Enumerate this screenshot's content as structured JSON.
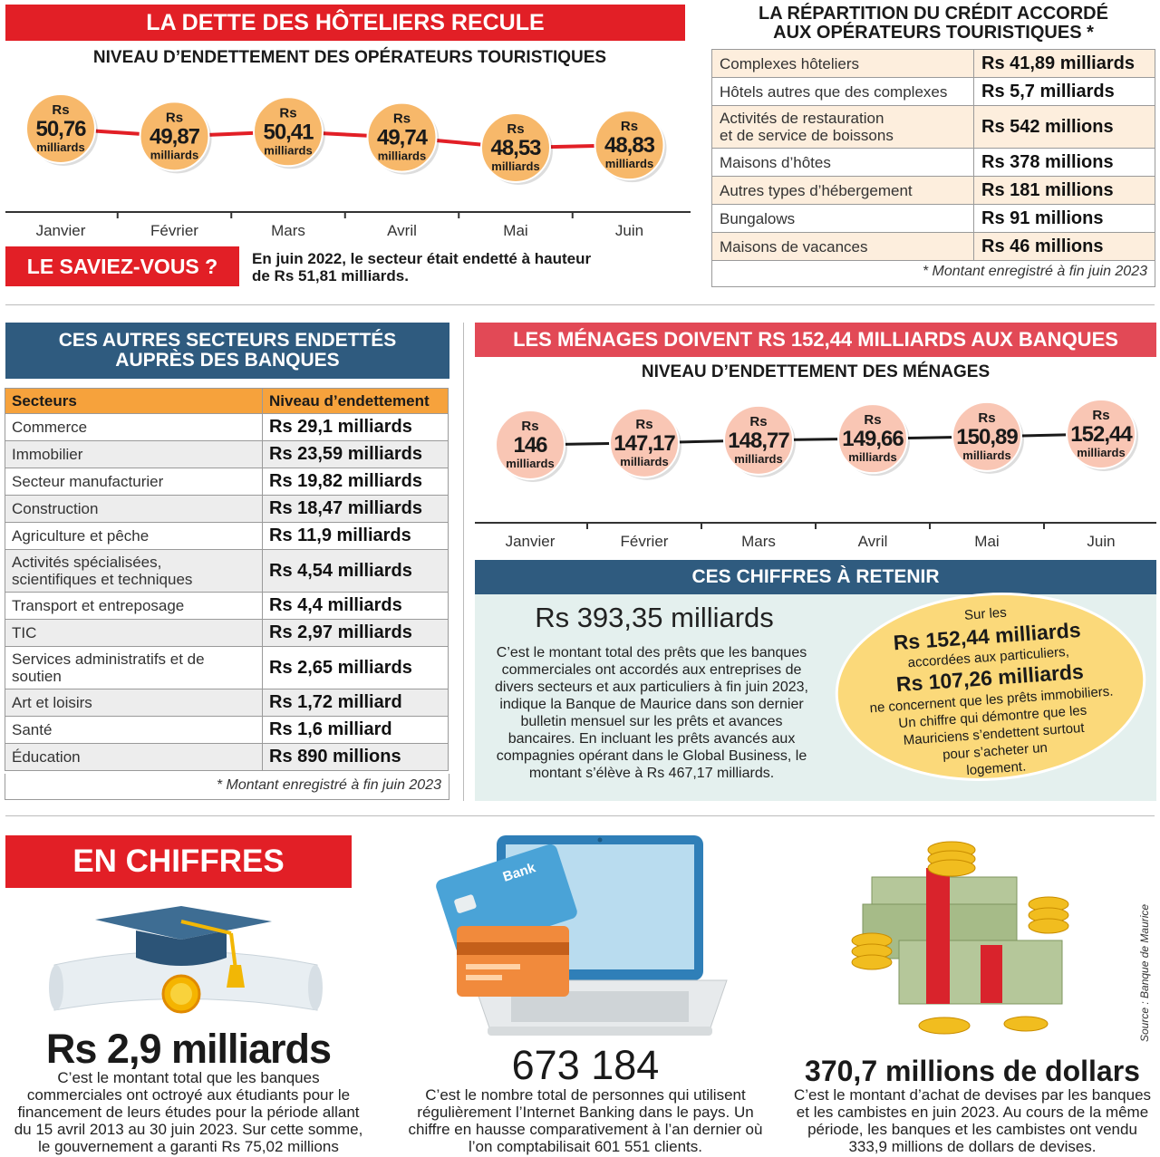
{
  "hotels": {
    "banner": "LA DETTE DES HÔTELIERS RECULE",
    "subtitle": "NIVEAU D’ENDETTEMENT DES OPÉRATEURS TOURISTIQUES",
    "saviez_label": "LE SAVIEZ-VOUS ?",
    "saviez_text_1": "En juin 2022, le secteur était endetté à hauteur",
    "saviez_text_2": "de Rs 51,81 milliards."
  },
  "credit": {
    "title_1": "LA RÉPARTITION DU CRÉDIT ACCORDÉ",
    "title_2": "AUX OPÉRATEURS TOURISTIQUES *",
    "rows": [
      {
        "label": "Complexes hôteliers",
        "value": "Rs 41,89 milliards"
      },
      {
        "label": "Hôtels autres que des complexes",
        "value": "Rs 5,7 milliards"
      },
      {
        "label": "Activités de restauration",
        "label2": "et de service de boissons",
        "value": "Rs 542 millions"
      },
      {
        "label": "Maisons d’hôtes",
        "value": "Rs 378 millions"
      },
      {
        "label": "Autres types d’hébergement",
        "value": "Rs 181 millions"
      },
      {
        "label": "Bungalows",
        "value": "Rs 91 millions"
      },
      {
        "label": "Maisons de vacances",
        "value": "Rs 46 millions"
      }
    ],
    "footnote": "* Montant enregistré à fin juin 2023"
  },
  "sectors": {
    "title_1": "CES AUTRES SECTEURS ENDETTÉS",
    "title_2": "AUPRÈS DES BANQUES",
    "col1": "Secteurs",
    "col2": "Niveau d’endettement",
    "rows": [
      {
        "label": "Commerce",
        "value": "Rs 29,1 milliards"
      },
      {
        "label": "Immobilier",
        "value": "Rs 23,59 milliards"
      },
      {
        "label": "Secteur manufacturier",
        "value": "Rs 19,82 milliards"
      },
      {
        "label": "Construction",
        "value": "Rs 18,47 milliards"
      },
      {
        "label": "Agriculture et pêche",
        "value": "Rs 11,9 milliards"
      },
      {
        "label": "Activités spécialisées,",
        "label2": "scientifiques et techniques",
        "value": "Rs 4,54 milliards"
      },
      {
        "label": "Transport et entreposage",
        "value": "Rs 4,4 milliards"
      },
      {
        "label": "TIC",
        "value": "Rs 2,97 milliards"
      },
      {
        "label": "Services administratifs et de",
        "label2": "soutien",
        "value": "Rs 2,65 milliards"
      },
      {
        "label": "Art et loisirs",
        "value": "Rs 1,72 milliard"
      },
      {
        "label": "Santé",
        "value": "Rs 1,6 milliard"
      },
      {
        "label": "Éducation",
        "value": "Rs 890 millions"
      }
    ],
    "footnote": "* Montant enregistré à fin juin 2023"
  },
  "households": {
    "banner": "LES MÉNAGES DOIVENT RS 152,44 MILLIARDS AUX BANQUES",
    "subtitle": "NIVEAU D’ENDETTEMENT DES MÉNAGES"
  },
  "retenir": {
    "banner": "CES CHIFFRES À RETENIR",
    "big": "Rs 393,35 milliards",
    "lines": [
      "C’est le montant total des prêts que les banques",
      "commerciales ont accordés aux entreprises de",
      "divers secteurs et aux particuliers à fin juin 2023,",
      "indique la Banque de Maurice dans son dernier",
      "bulletin mensuel sur les prêts et avances",
      "bancaires. En incluant les prêts avancés aux",
      "compagnies opérant dans le Global Business, le",
      "montant s’élève à Rs 467,17 milliards."
    ],
    "oval": {
      "l1": "Sur les",
      "l2": "Rs 152,44 milliards",
      "l3": "accordées aux particuliers,",
      "l4": "Rs 107,26 milliards",
      "l5": "ne concernent que les prêts immobiliers.",
      "l6": "Un chiffre qui démontre que les",
      "l7": "Mauriciens s’endettent surtout",
      "l8": "pour s’acheter un",
      "l9": "logement."
    }
  },
  "chiffres": {
    "banner": "EN CHIFFRES",
    "c1": {
      "big": "Rs 2,9 milliards",
      "lines": [
        "C’est le montant total que les banques",
        "commerciales ont octroyé aux étudiants pour le",
        "financement de leurs études pour la période allant",
        "du 15 avril 2013 au 30 juin 2023. Sur cette somme,",
        "le gouvernement a garanti Rs 75,02 millions"
      ]
    },
    "c2": {
      "big": "673 184",
      "card_text": "Bank",
      "lines": [
        "C’est le nombre total de personnes qui utilisent",
        "régulièrement l’Internet Banking dans le pays. Un",
        "chiffre en hausse comparativement à l’an dernier où",
        "l’on comptabilisait 601 551 clients."
      ]
    },
    "c3": {
      "big": "370,7 millions de dollars",
      "lines": [
        "C’est le montant d’achat de devises par les banques",
        "et les cambistes en juin 2023. Au cours de la même",
        "période, les banques et les cambistes ont vendu",
        "333,9 millions de dollars de devises."
      ]
    },
    "source": "Source : Banque de Maurice"
  },
  "colors": {
    "red": "#e21f26",
    "blue": "#2f5b7f",
    "orange_bubble": "#f7b86a",
    "pink_bubble": "#f9c6b4",
    "oval": "#fbd97a"
  },
  "chart_data": [
    {
      "type": "line",
      "title": "NIVEAU D’ENDETTEMENT DES OPÉRATEURS TOURISTIQUES",
      "categories": [
        "Janvier",
        "Février",
        "Mars",
        "Avril",
        "Mai",
        "Juin"
      ],
      "values": [
        50.76,
        49.87,
        50.41,
        49.74,
        48.53,
        48.83
      ],
      "labels": [
        "50,76",
        "49,87",
        "50,41",
        "49,74",
        "48,53",
        "48,83"
      ],
      "prefix": "Rs",
      "unit": "milliards",
      "line_color": "#e21f26",
      "marker_color": "#f7b86a"
    },
    {
      "type": "line",
      "title": "NIVEAU D’ENDETTEMENT DES MÉNAGES",
      "categories": [
        "Janvier",
        "Février",
        "Mars",
        "Avril",
        "Mai",
        "Juin"
      ],
      "values": [
        146,
        147.17,
        148.77,
        149.66,
        150.89,
        152.44
      ],
      "labels": [
        "146",
        "147,17",
        "148,77",
        "149,66",
        "150,89",
        "152,44"
      ],
      "prefix": "Rs",
      "unit": "milliards",
      "line_color": "#1a1a1a",
      "marker_color": "#f9c6b4"
    }
  ]
}
